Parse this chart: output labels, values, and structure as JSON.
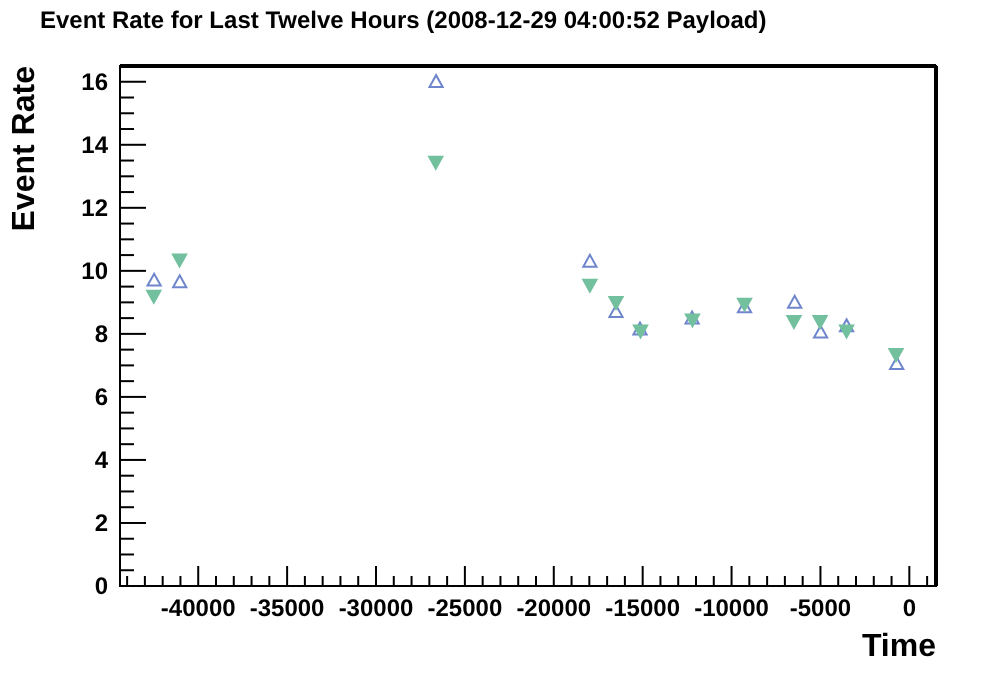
{
  "chart_data": {
    "type": "scatter",
    "title": "Event Rate for Last Twelve Hours (2008-12-29 04:00:52 Payload)",
    "xlabel": "Time",
    "ylabel": "Event Rate",
    "xlim": [
      -44400,
      1500
    ],
    "ylim": [
      0,
      16.5
    ],
    "xticks": [
      {
        "value": -44000,
        "label": null
      },
      {
        "value": -43000,
        "label": null
      },
      {
        "value": -42000,
        "label": null
      },
      {
        "value": -41000,
        "label": null
      },
      -40000,
      {
        "value": -39000,
        "label": null
      },
      {
        "value": -38000,
        "label": null
      },
      {
        "value": -37000,
        "label": null
      },
      {
        "value": -36000,
        "label": null
      },
      -35000,
      {
        "value": -34000,
        "label": null
      },
      {
        "value": -33000,
        "label": null
      },
      {
        "value": -32000,
        "label": null
      },
      {
        "value": -31000,
        "label": null
      },
      -30000,
      {
        "value": -29000,
        "label": null
      },
      {
        "value": -28000,
        "label": null
      },
      {
        "value": -27000,
        "label": null
      },
      {
        "value": -26000,
        "label": null
      },
      -25000,
      {
        "value": -24000,
        "label": null
      },
      {
        "value": -23000,
        "label": null
      },
      {
        "value": -22000,
        "label": null
      },
      {
        "value": -21000,
        "label": null
      },
      -20000,
      {
        "value": -19000,
        "label": null
      },
      {
        "value": -18000,
        "label": null
      },
      {
        "value": -17000,
        "label": null
      },
      {
        "value": -16000,
        "label": null
      },
      -15000,
      {
        "value": -14000,
        "label": null
      },
      {
        "value": -13000,
        "label": null
      },
      {
        "value": -12000,
        "label": null
      },
      {
        "value": -11000,
        "label": null
      },
      -10000,
      {
        "value": -9000,
        "label": null
      },
      {
        "value": -8000,
        "label": null
      },
      {
        "value": -7000,
        "label": null
      },
      {
        "value": -6000,
        "label": null
      },
      -5000,
      {
        "value": -4000,
        "label": null
      },
      {
        "value": -3000,
        "label": null
      },
      {
        "value": -2000,
        "label": null
      },
      {
        "value": -1000,
        "label": null
      },
      0,
      {
        "value": 1000,
        "label": null
      }
    ],
    "yticks": [
      0,
      {
        "value": 0.5,
        "label": null
      },
      {
        "value": 1,
        "label": null
      },
      {
        "value": 1.5,
        "label": null
      },
      2,
      {
        "value": 2.5,
        "label": null
      },
      {
        "value": 3,
        "label": null
      },
      {
        "value": 3.5,
        "label": null
      },
      4,
      {
        "value": 4.5,
        "label": null
      },
      {
        "value": 5,
        "label": null
      },
      {
        "value": 5.5,
        "label": null
      },
      6,
      {
        "value": 6.5,
        "label": null
      },
      {
        "value": 7,
        "label": null
      },
      {
        "value": 7.5,
        "label": null
      },
      8,
      {
        "value": 8.5,
        "label": null
      },
      {
        "value": 9,
        "label": null
      },
      {
        "value": 9.5,
        "label": null
      },
      10,
      {
        "value": 10.5,
        "label": null
      },
      {
        "value": 11,
        "label": null
      },
      {
        "value": 11.5,
        "label": null
      },
      12,
      {
        "value": 12.5,
        "label": null
      },
      {
        "value": 13,
        "label": null
      },
      {
        "value": 13.5,
        "label": null
      },
      14,
      {
        "value": 14.5,
        "label": null
      },
      {
        "value": 15,
        "label": null
      },
      {
        "value": 15.5,
        "label": null
      },
      16
    ],
    "marker": "triangle",
    "series": [
      {
        "color": "#6f86cc",
        "x": [
          -42480,
          -41040,
          -26620,
          -17970,
          -16500,
          -15150,
          -12220,
          -9270,
          -6450,
          -4990,
          -3530,
          -710
        ],
        "values": [
          9.7,
          9.65,
          16.0,
          10.3,
          8.7,
          8.15,
          8.5,
          8.85,
          9.0,
          8.05,
          8.25,
          7.05
        ]
      },
      {
        "color": "#72c09e",
        "x": [
          -42500,
          -41050,
          -26640,
          -17970,
          -16500,
          -15120,
          -12200,
          -9270,
          -6490,
          -5020,
          -3530,
          -750
        ],
        "values": [
          9.2,
          10.35,
          13.45,
          9.55,
          9.0,
          8.1,
          8.45,
          8.95,
          8.4,
          8.4,
          8.1,
          7.35
        ]
      }
    ]
  }
}
